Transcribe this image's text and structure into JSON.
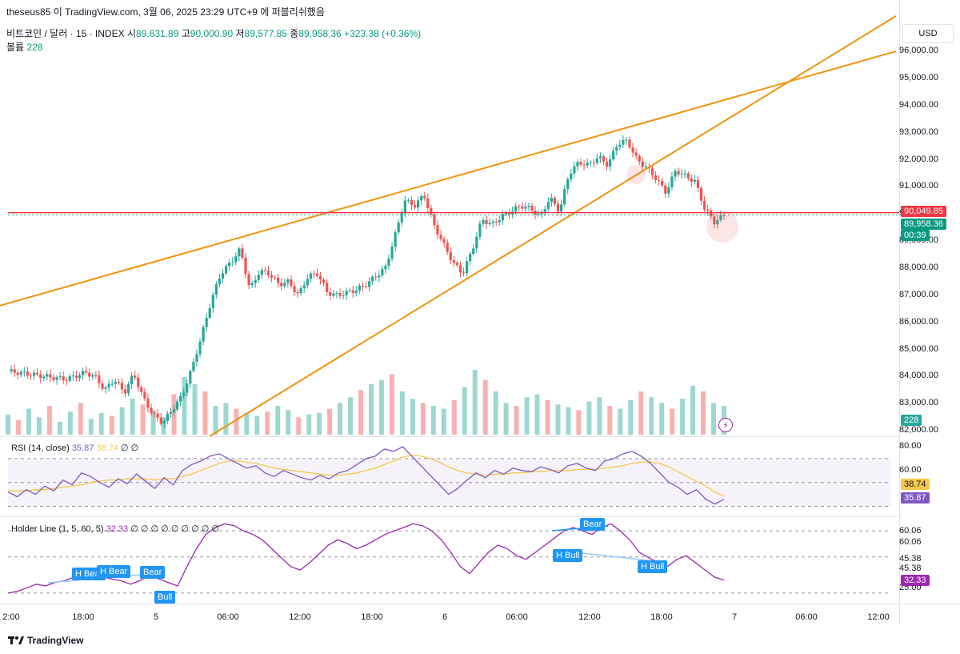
{
  "header": {
    "publisher": "theseus85 이 TradingView.com, 3월 06, 2025 23:29 UTC+9 에 퍼블리쉬했음",
    "symbol": "비트코인 / 달러 · 15 · INDEX",
    "o_label": "시",
    "o_value": "89,631.89",
    "h_label": "고",
    "h_value": "90,000.90",
    "l_label": "저",
    "l_value": "89,577.85",
    "c_label": "종",
    "c_value": "89,958.36",
    "change": "+323.38 (+0.36%)",
    "volume_label": "볼륨",
    "volume_value": "228"
  },
  "currency": "USD",
  "rsi": {
    "title": "RSI (14, close)",
    "value": "35.87",
    "ma": "38.74",
    "extra": "∅ ∅"
  },
  "holder": {
    "title": "Holder Line (1, 5, 60, 5)",
    "value": "32.33",
    "extra": "∅ ∅ ∅ ∅ ∅ ∅ ∅ ∅ ∅"
  },
  "tags": {
    "resistance": "90,049.85",
    "last_price": "89,958.36",
    "countdown": "00:39",
    "volume": "228",
    "rsi_ma": "38.74",
    "rsi": "35.87",
    "holder": "32.33"
  },
  "signals": [
    "H Bear",
    "H Bear",
    "Bear",
    "Bull",
    "Bear",
    "H Bull",
    "H Bull"
  ],
  "brand": "TradingView",
  "colors": {
    "up": "#26a69a",
    "down": "#ef5350",
    "trend": "#f0930f",
    "resistance": "#f23645",
    "rsi": "#7e57c2",
    "rsi_ma": "#f5c84c",
    "holder": "#9c27b0"
  },
  "chart_data": [
    {
      "type": "candlestick",
      "title": "비트코인 / 달러 · 15 · INDEX",
      "x_ticks": [
        "2:00",
        "18:00",
        "5",
        "06:00",
        "12:00",
        "18:00",
        "6",
        "06:00",
        "12:00",
        "18:00",
        "7",
        "06:00",
        "12:00"
      ],
      "y_ticks": [
        82000,
        83000,
        84000,
        85000,
        86000,
        87000,
        88000,
        89000,
        90000,
        91000,
        92000,
        93000,
        94000,
        95000,
        96000
      ],
      "y_tick_labels": [
        "82,000.00",
        "83,000.00",
        "84,000.00",
        "85,000.00",
        "86,000.00",
        "87,000.00",
        "88,000.00",
        "89,000.00",
        "90,000.00",
        "91,000.00",
        "92,000.00",
        "93,000.00",
        "94,000.00",
        "95,000.00",
        "96,000.00"
      ],
      "ylim": [
        81800,
        97300
      ],
      "price_path": [
        [
          0,
          84200
        ],
        [
          4,
          84100
        ],
        [
          8,
          84000
        ],
        [
          12,
          83900
        ],
        [
          16,
          84150
        ],
        [
          18,
          84000
        ],
        [
          20,
          83500
        ],
        [
          22,
          83900
        ],
        [
          24,
          83400
        ],
        [
          26,
          84100
        ],
        [
          28,
          83200
        ],
        [
          30,
          82600
        ],
        [
          32,
          82300
        ],
        [
          34,
          82800
        ],
        [
          36,
          83300
        ],
        [
          38,
          84300
        ],
        [
          40,
          85500
        ],
        [
          42,
          86800
        ],
        [
          44,
          87800
        ],
        [
          46,
          88200
        ],
        [
          48,
          88700
        ],
        [
          50,
          87200
        ],
        [
          52,
          87900
        ],
        [
          54,
          87800
        ],
        [
          56,
          87400
        ],
        [
          58,
          87500
        ],
        [
          60,
          87000
        ],
        [
          62,
          87700
        ],
        [
          64,
          87800
        ],
        [
          66,
          87100
        ],
        [
          68,
          87000
        ],
        [
          70,
          87100
        ],
        [
          72,
          87200
        ],
        [
          74,
          87400
        ],
        [
          76,
          87700
        ],
        [
          78,
          88000
        ],
        [
          80,
          89200
        ],
        [
          82,
          90500
        ],
        [
          84,
          90300
        ],
        [
          86,
          90700
        ],
        [
          88,
          89600
        ],
        [
          90,
          88900
        ],
        [
          92,
          88200
        ],
        [
          94,
          87800
        ],
        [
          96,
          88700
        ],
        [
          98,
          89800
        ],
        [
          100,
          89600
        ],
        [
          102,
          89900
        ],
        [
          104,
          90100
        ],
        [
          106,
          90300
        ],
        [
          108,
          90200
        ],
        [
          110,
          89900
        ],
        [
          112,
          90600
        ],
        [
          114,
          90100
        ],
        [
          116,
          91500
        ],
        [
          118,
          91900
        ],
        [
          120,
          91800
        ],
        [
          122,
          92100
        ],
        [
          124,
          91800
        ],
        [
          126,
          92600
        ],
        [
          128,
          92700
        ],
        [
          130,
          92000
        ],
        [
          132,
          91700
        ],
        [
          134,
          91300
        ],
        [
          136,
          90800
        ],
        [
          138,
          91600
        ],
        [
          140,
          91400
        ],
        [
          142,
          91200
        ],
        [
          144,
          90200
        ],
        [
          146,
          89700
        ],
        [
          148,
          89958
        ]
      ],
      "volume": [
        14,
        10,
        18,
        12,
        20,
        9,
        16,
        22,
        11,
        15,
        13,
        19,
        25,
        21,
        17,
        12,
        28,
        40,
        35,
        30,
        20,
        22,
        18,
        15,
        13,
        16,
        20,
        17,
        12,
        14,
        15,
        18,
        22,
        26,
        31,
        35,
        38,
        42,
        30,
        25,
        22,
        20,
        18,
        24,
        33,
        45,
        38,
        30,
        22,
        20,
        26,
        28,
        24,
        21,
        19,
        17,
        23,
        26,
        20,
        18,
        24,
        30,
        26,
        22,
        18,
        25,
        34,
        30,
        22,
        20
      ],
      "trendlines": [
        {
          "name": "upper",
          "from": [
            0,
            86620
          ],
          "to": [
            1120,
            96000
          ]
        },
        {
          "name": "lower",
          "from": [
            262,
            81800
          ],
          "to": [
            1120,
            97300
          ]
        }
      ],
      "horizontal_line": 90050,
      "last_price": 89958.36
    },
    {
      "type": "line",
      "title": "RSI (14, close)",
      "y_ticks": [
        60,
        80
      ],
      "y_tick_labels": [
        "60.00",
        "80.00"
      ],
      "bands": [
        70,
        50,
        30
      ],
      "ylim": [
        25,
        82
      ],
      "rsi": [
        42,
        38,
        44,
        40,
        47,
        43,
        52,
        48,
        58,
        55,
        50,
        46,
        53,
        49,
        57,
        51,
        45,
        54,
        48,
        60,
        65,
        68,
        72,
        74,
        70,
        66,
        62,
        64,
        58,
        55,
        60,
        57,
        54,
        52,
        56,
        53,
        58,
        60,
        65,
        70,
        72,
        78,
        76,
        80,
        72,
        64,
        56,
        48,
        40,
        45,
        52,
        58,
        54,
        60,
        57,
        62,
        60,
        59,
        63,
        61,
        58,
        64,
        66,
        62,
        60,
        68,
        70,
        74,
        76,
        72,
        66,
        58,
        50,
        46,
        40,
        44,
        36,
        32,
        35.87
      ],
      "ma": [
        43,
        43,
        43,
        44,
        44,
        45,
        46,
        47,
        48,
        50,
        51,
        52,
        52,
        53,
        53,
        53,
        52,
        53,
        53,
        55,
        57,
        60,
        63,
        66,
        68,
        68,
        67,
        66,
        64,
        62,
        61,
        60,
        59,
        58,
        57,
        56,
        56,
        57,
        58,
        60,
        62,
        65,
        68,
        71,
        73,
        72,
        70,
        67,
        63,
        60,
        58,
        57,
        56,
        57,
        57,
        58,
        58,
        59,
        59,
        60,
        60,
        60,
        61,
        61,
        61,
        62,
        63,
        64,
        66,
        67,
        67,
        66,
        63,
        59,
        55,
        51,
        47,
        42,
        38.74
      ]
    },
    {
      "type": "line",
      "title": "Holder Line (1, 5, 60, 5)",
      "y_tick_labels": [
        "25.00",
        "45.38",
        "45.38",
        "60.06",
        "60.06"
      ],
      "bands": [
        25,
        45.38,
        60.06
      ],
      "ylim": [
        20,
        66
      ],
      "holder": [
        25,
        26,
        28,
        30,
        29,
        31,
        32,
        34,
        33,
        35,
        34,
        33,
        32,
        30,
        32,
        35,
        33,
        31,
        29,
        40,
        50,
        58,
        62,
        64,
        63,
        60,
        58,
        55,
        50,
        45,
        40,
        38,
        42,
        47,
        52,
        55,
        53,
        50,
        52,
        55,
        58,
        60,
        62,
        64,
        63,
        60,
        55,
        48,
        40,
        36,
        42,
        48,
        52,
        50,
        46,
        44,
        48,
        52,
        56,
        60,
        62,
        60,
        58,
        62,
        64,
        60,
        55,
        48,
        45,
        42,
        40,
        44,
        46,
        42,
        38,
        34,
        32.33
      ]
    }
  ]
}
